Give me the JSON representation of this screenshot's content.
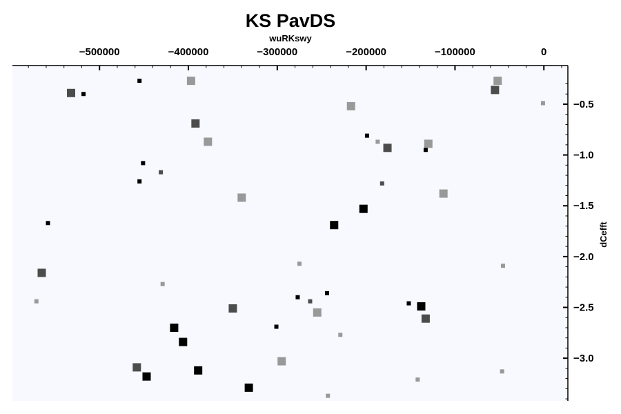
{
  "chart_data": {
    "type": "scatter",
    "title": "KS PavDS",
    "xlabel": "wuRKswy",
    "ylabel": "dCefft",
    "x_axis_position": "top",
    "y_axis_position": "right",
    "y_inverted": true,
    "xlim": [
      -598000,
      27000
    ],
    "ylim": [
      -0.12,
      -3.42
    ],
    "x_ticks": [
      -500000,
      -400000,
      -300000,
      -200000,
      -100000,
      0
    ],
    "x_tick_labels": [
      "−500000",
      "−400000",
      "−300000",
      "−200000",
      "−100000",
      "0"
    ],
    "y_ticks": [
      -0.5,
      -1.0,
      -1.5,
      -2.0,
      -2.5,
      -3.0
    ],
    "y_tick_labels": [
      "−0.5",
      "−1.0",
      "−1.5",
      "−2.0",
      "−2.5",
      "−3.0"
    ],
    "grid": false,
    "legend": "none",
    "colors": {
      "background": "#f8f9fe",
      "black": "#000000",
      "dark_gray": "#4c4c4c",
      "light_gray": "#999999"
    },
    "points": [
      {
        "x": -455000,
        "y": -0.27,
        "size": "small",
        "color": "black"
      },
      {
        "x": -397000,
        "y": -0.27,
        "size": "medium",
        "color": "light_gray"
      },
      {
        "x": -532000,
        "y": -0.39,
        "size": "medium",
        "color": "dark_gray"
      },
      {
        "x": -518000,
        "y": -0.4,
        "size": "small",
        "color": "black"
      },
      {
        "x": -52000,
        "y": -0.27,
        "size": "medium",
        "color": "light_gray"
      },
      {
        "x": -55000,
        "y": -0.36,
        "size": "medium",
        "color": "dark_gray"
      },
      {
        "x": -1000,
        "y": -0.49,
        "size": "small",
        "color": "light_gray"
      },
      {
        "x": -217000,
        "y": -0.52,
        "size": "medium",
        "color": "light_gray"
      },
      {
        "x": -392000,
        "y": -0.69,
        "size": "medium",
        "color": "dark_gray"
      },
      {
        "x": -378000,
        "y": -0.87,
        "size": "medium",
        "color": "light_gray"
      },
      {
        "x": -199000,
        "y": -0.81,
        "size": "small",
        "color": "black"
      },
      {
        "x": -187000,
        "y": -0.87,
        "size": "small",
        "color": "light_gray"
      },
      {
        "x": -176000,
        "y": -0.93,
        "size": "medium",
        "color": "dark_gray"
      },
      {
        "x": -130000,
        "y": -0.89,
        "size": "medium",
        "color": "light_gray"
      },
      {
        "x": -133000,
        "y": -0.95,
        "size": "small",
        "color": "black"
      },
      {
        "x": -451000,
        "y": -1.08,
        "size": "small",
        "color": "black"
      },
      {
        "x": -431000,
        "y": -1.17,
        "size": "small",
        "color": "dark_gray"
      },
      {
        "x": -455000,
        "y": -1.26,
        "size": "small",
        "color": "black"
      },
      {
        "x": -182000,
        "y": -1.28,
        "size": "small",
        "color": "dark_gray"
      },
      {
        "x": -113000,
        "y": -1.38,
        "size": "medium",
        "color": "light_gray"
      },
      {
        "x": -340000,
        "y": -1.42,
        "size": "medium",
        "color": "light_gray"
      },
      {
        "x": -203000,
        "y": -1.53,
        "size": "medium",
        "color": "black"
      },
      {
        "x": -236000,
        "y": -1.69,
        "size": "medium",
        "color": "black"
      },
      {
        "x": -558000,
        "y": -1.67,
        "size": "small",
        "color": "black"
      },
      {
        "x": -275000,
        "y": -2.07,
        "size": "small",
        "color": "light_gray"
      },
      {
        "x": -46000,
        "y": -2.09,
        "size": "small",
        "color": "light_gray"
      },
      {
        "x": -565000,
        "y": -2.16,
        "size": "medium",
        "color": "dark_gray"
      },
      {
        "x": -429000,
        "y": -2.27,
        "size": "small",
        "color": "light_gray"
      },
      {
        "x": -244000,
        "y": -2.36,
        "size": "small",
        "color": "black"
      },
      {
        "x": -277000,
        "y": -2.4,
        "size": "small",
        "color": "black"
      },
      {
        "x": -263000,
        "y": -2.44,
        "size": "small",
        "color": "dark_gray"
      },
      {
        "x": -152000,
        "y": -2.46,
        "size": "small",
        "color": "black"
      },
      {
        "x": -138000,
        "y": -2.49,
        "size": "medium",
        "color": "black"
      },
      {
        "x": -350000,
        "y": -2.51,
        "size": "medium",
        "color": "dark_gray"
      },
      {
        "x": -255000,
        "y": -2.55,
        "size": "medium",
        "color": "light_gray"
      },
      {
        "x": -133000,
        "y": -2.61,
        "size": "medium",
        "color": "dark_gray"
      },
      {
        "x": -301000,
        "y": -2.69,
        "size": "small",
        "color": "black"
      },
      {
        "x": -416000,
        "y": -2.7,
        "size": "medium",
        "color": "black"
      },
      {
        "x": -229000,
        "y": -2.77,
        "size": "small",
        "color": "light_gray"
      },
      {
        "x": -406000,
        "y": -2.84,
        "size": "medium",
        "color": "black"
      },
      {
        "x": -571000,
        "y": -2.44,
        "size": "small",
        "color": "light_gray"
      },
      {
        "x": -458000,
        "y": -3.09,
        "size": "medium",
        "color": "dark_gray"
      },
      {
        "x": -295000,
        "y": -3.03,
        "size": "medium",
        "color": "light_gray"
      },
      {
        "x": -389000,
        "y": -3.12,
        "size": "medium",
        "color": "black"
      },
      {
        "x": -447000,
        "y": -3.18,
        "size": "medium",
        "color": "black"
      },
      {
        "x": -47000,
        "y": -3.13,
        "size": "small",
        "color": "light_gray"
      },
      {
        "x": -142000,
        "y": -3.21,
        "size": "small",
        "color": "light_gray"
      },
      {
        "x": -332000,
        "y": -3.29,
        "size": "medium",
        "color": "black"
      },
      {
        "x": -243000,
        "y": -3.37,
        "size": "small",
        "color": "light_gray"
      }
    ]
  }
}
